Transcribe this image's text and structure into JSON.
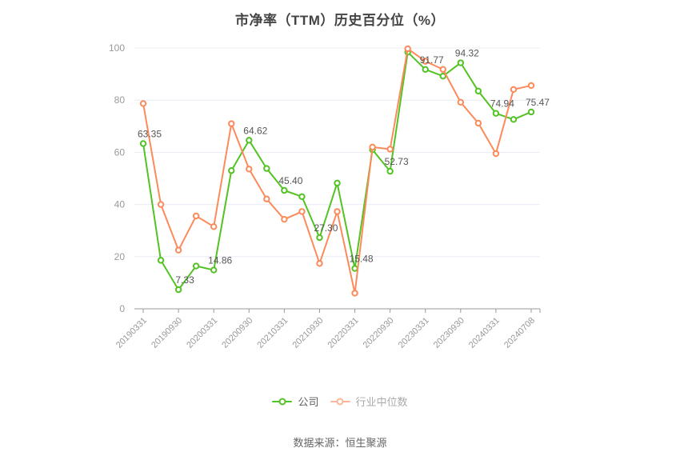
{
  "title": "市净率（TTM）历史百分位（%）",
  "source_note": "数据来源：恒生聚源",
  "legend": {
    "items": [
      {
        "label": "公司",
        "marker_color": "#53c223",
        "text_color": "#5f5f5f"
      },
      {
        "label": "行业中位数",
        "marker_color": "#fcb596",
        "text_color": "#aaaaaa"
      }
    ]
  },
  "colors": {
    "company": "#53c223",
    "industry": "#fc8a5a",
    "grid": "#e8ecf6",
    "axis_line": "#999999",
    "tick_label": "#999999",
    "data_label": "#555555",
    "title": "#444444",
    "source": "#666666",
    "marker_fill": "#ffffff"
  },
  "chart_data": {
    "type": "line",
    "title": "市净率（TTM）历史百分位（%）",
    "categories": [
      "20190331",
      "20190630",
      "20190930",
      "20191231",
      "20200331",
      "20200630",
      "20200930",
      "20201231",
      "20210331",
      "20210630",
      "20210930",
      "20211231",
      "20220331",
      "20220630",
      "20220930",
      "20221231",
      "20230331",
      "20230630",
      "20230930",
      "20231231",
      "20240331",
      "20240630",
      "20240708"
    ],
    "x_tick_labels": [
      "20190331",
      "20190930",
      "20200331",
      "20200930",
      "20210331",
      "20210930",
      "20220331",
      "20220930",
      "20230331",
      "20230930",
      "20240331",
      "20240708"
    ],
    "x_label_interval": 2,
    "series": [
      {
        "name": "公司",
        "color": "#53c223",
        "values": [
          63.35,
          18.6,
          7.33,
          16.4,
          14.86,
          53.0,
          64.62,
          53.8,
          45.4,
          43.0,
          27.3,
          48.2,
          15.48,
          61.0,
          52.73,
          98.4,
          91.77,
          89.2,
          94.32,
          83.5,
          74.94,
          72.6,
          75.47
        ]
      },
      {
        "name": "行业中位数",
        "color": "#fc8a5a",
        "values": [
          78.7,
          40.0,
          22.5,
          35.6,
          31.5,
          71.0,
          53.6,
          42.1,
          34.3,
          37.3,
          17.4,
          37.3,
          6.0,
          62.0,
          61.2,
          99.7,
          94.9,
          91.8,
          79.2,
          71.2,
          59.5,
          84.1,
          85.6
        ]
      }
    ],
    "point_labels": {
      "series": "公司",
      "indices": [
        0,
        2,
        4,
        6,
        8,
        10,
        12,
        14,
        16,
        18,
        20,
        22
      ],
      "labels": [
        "63.35",
        "7.33",
        "14.86",
        "64.62",
        "45.40",
        "27.30",
        "15.48",
        "52.73",
        "91.77",
        "94.32",
        "74.94",
        "75.47"
      ]
    },
    "ylim": [
      0,
      100
    ],
    "yticks": [
      0,
      20,
      40,
      60,
      80,
      100
    ],
    "grid": true,
    "legend_position": "bottom",
    "legend_entries": [
      "公司",
      "行业中位数"
    ]
  }
}
